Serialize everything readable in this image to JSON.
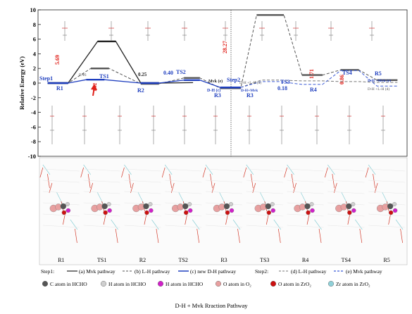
{
  "chart_data": {
    "type": "line",
    "ylabel": "Relative Energy (eV)",
    "ylim": [
      -10,
      10
    ],
    "yticks": [
      -10,
      -8,
      -6,
      -4,
      -2,
      0,
      2,
      4,
      6,
      8,
      10
    ],
    "states": [
      "R1",
      "TS1",
      "R2",
      "TS2",
      "R3",
      "TS3",
      "R4",
      "TS4",
      "R5"
    ],
    "state_labels": {
      "R1": "R1",
      "TS1": "TS1",
      "R2": "R2",
      "TS2": "TS2",
      "R3": "R3",
      "TS3": "TS3",
      "R4": "R4",
      "TS4": "TS4",
      "R5": "R5"
    },
    "series": [
      {
        "name": "(a) Mvk pathway",
        "color": "#222222",
        "style": "solid",
        "points": [
          [
            0.3,
            0
          ],
          [
            1.2,
            0
          ],
          [
            2.5,
            5.69
          ],
          [
            3.3,
            5.69
          ],
          [
            4.4,
            0
          ],
          [
            5.2,
            0
          ],
          [
            6.7,
            0.06
          ]
        ]
      },
      {
        "name": "(b) L-H pathway",
        "color": "#555555",
        "style": "dash",
        "points": [
          [
            0.3,
            0
          ],
          [
            1.2,
            0
          ],
          [
            2.2,
            2.0
          ],
          [
            3.0,
            2.0
          ],
          [
            4.4,
            -0.1
          ],
          [
            5.2,
            -0.1
          ],
          [
            6.3,
            0.7
          ],
          [
            7.0,
            0.7
          ],
          [
            7.9,
            -0.7
          ],
          [
            8.8,
            -0.7
          ],
          [
            9.5,
            9.3
          ],
          [
            10.7,
            9.3
          ],
          [
            11.5,
            1.1
          ],
          [
            12.4,
            1.1
          ],
          [
            13.2,
            1.8
          ],
          [
            14.0,
            1.8
          ],
          [
            14.8,
            0.4
          ],
          [
            15.7,
            0.4
          ]
        ]
      },
      {
        "name": "(c) new D-H pathway",
        "color": "#1f3fbf",
        "style": "solid",
        "points": [
          [
            0.3,
            0
          ],
          [
            1.2,
            0
          ],
          [
            2.0,
            0.46
          ],
          [
            2.8,
            0.46
          ],
          [
            4.4,
            0
          ],
          [
            5.2,
            0
          ],
          [
            6.3,
            0.4
          ],
          [
            7.0,
            0.4
          ],
          [
            7.9,
            -0.6
          ],
          [
            8.8,
            -0.6
          ]
        ]
      },
      {
        "name": "(d) L-H pathway",
        "color": "#777777",
        "style": "dash",
        "points": [
          [
            8.8,
            -0.6
          ],
          [
            9.7,
            0.4
          ],
          [
            10.5,
            0.4
          ],
          [
            11.5,
            0.3
          ],
          [
            12.4,
            0.3
          ],
          [
            13.2,
            0.2
          ],
          [
            14.0,
            0.2
          ],
          [
            14.8,
            0.1
          ],
          [
            15.7,
            0.1
          ]
        ]
      },
      {
        "name": "(e) Mvk pathway",
        "color": "#3b5bd6",
        "style": "dash",
        "points": [
          [
            8.8,
            -0.6
          ],
          [
            9.7,
            0.2
          ],
          [
            10.5,
            0.2
          ],
          [
            11.5,
            -0.18
          ],
          [
            12.4,
            -0.18
          ],
          [
            13.2,
            1.71
          ],
          [
            14.0,
            1.71
          ],
          [
            14.8,
            -0.4
          ],
          [
            15.7,
            -0.4
          ]
        ]
      }
    ],
    "annotations": [
      "5.69",
      "0.46",
      "1.02",
      "0.25",
      "0.40",
      "28.27",
      "0.18",
      "1.71",
      "0.86",
      "Step1",
      "Step2",
      "D-H (c)",
      "Mvk (e)",
      "D-H+Mvk",
      "D-H +Mvk (e)",
      "D-H +L-H (d)",
      "D-H +L-H (d)"
    ],
    "legend": {
      "step1_label": "Step1:",
      "step2_label": "Step2:",
      "items": [
        "(a) Mvk pathway",
        "(b) L-H pathway",
        "(c) new D-H pathway",
        "(d) L-H pathway",
        "(e) Mvk pathway"
      ]
    },
    "atom_legend": [
      {
        "label": "C atom in HCHO",
        "color": "#555555"
      },
      {
        "label": "H atom in HCHO",
        "color": "#cfcfcf"
      },
      {
        "label": "H atom in HCHO",
        "color": "#d020c8"
      },
      {
        "label": "O atom in O₂",
        "color": "#e8a0a0"
      },
      {
        "label": "O atom in ZrO₂",
        "color": "#cc1010"
      },
      {
        "label": "Zr atom in ZrO₂",
        "color": "#8fd0d8"
      }
    ],
    "caption": "D-H + Mvk Rraction Pathway"
  },
  "colors": {
    "step_label": "#1f3fbf",
    "barrier_red": "#e0201a",
    "lattice": "#d23a2a",
    "lattice_cyan": "#8ccfd6"
  }
}
